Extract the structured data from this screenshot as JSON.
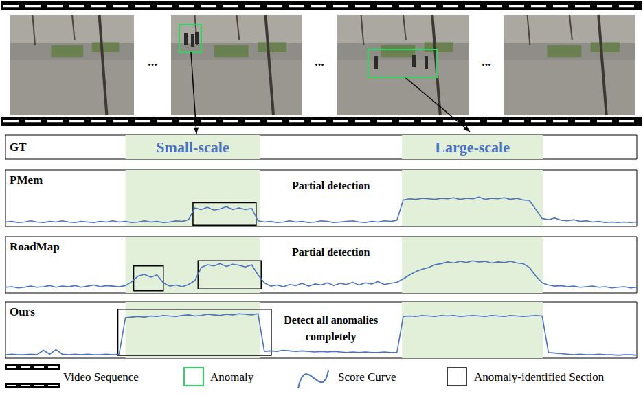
{
  "frames": {
    "count": 4,
    "ellipsis": "...",
    "anomaly_color": "#2ed65f"
  },
  "ground_truth": {
    "label": "GT",
    "xlim": [
      0,
      100
    ],
    "color": "#e2efd9",
    "label_color": "#4a72c0",
    "anomaly_ranges": [
      {
        "label": "Small-scale",
        "x": [
          19.0,
          40.3
        ]
      },
      {
        "label": "Large-scale",
        "x": [
          62.8,
          85.1
        ]
      }
    ]
  },
  "chart_data": [
    {
      "type": "line",
      "title": "PMem",
      "annotation": "Partial detection",
      "color": "#4a72c0",
      "xlim": [
        0,
        100
      ],
      "ylim": [
        0,
        1
      ],
      "tick_labels": false,
      "x": [
        0,
        1,
        2,
        3,
        4,
        5,
        6,
        7,
        8,
        9,
        10,
        11,
        12,
        13,
        14,
        15,
        16,
        17,
        18,
        19,
        20,
        21,
        22,
        23,
        24,
        25,
        26,
        27,
        28,
        29,
        30,
        31,
        32,
        33,
        34,
        35,
        36,
        37,
        38,
        39,
        40,
        41,
        42,
        43,
        44,
        45,
        46,
        47,
        48,
        49,
        50,
        51,
        52,
        53,
        54,
        55,
        56,
        57,
        58,
        59,
        60,
        61,
        62,
        63,
        64,
        65,
        66,
        67,
        68,
        69,
        70,
        71,
        72,
        73,
        74,
        75,
        76,
        77,
        78,
        79,
        80,
        81,
        82,
        83,
        84,
        85,
        86,
        87,
        88,
        89,
        90,
        91,
        92,
        93,
        94,
        95,
        96,
        97,
        98,
        99,
        100
      ],
      "values": [
        0.08,
        0.09,
        0.07,
        0.08,
        0.1,
        0.08,
        0.07,
        0.09,
        0.08,
        0.1,
        0.08,
        0.07,
        0.09,
        0.08,
        0.07,
        0.09,
        0.08,
        0.1,
        0.08,
        0.09,
        0.07,
        0.08,
        0.1,
        0.08,
        0.09,
        0.07,
        0.08,
        0.1,
        0.09,
        0.12,
        0.33,
        0.3,
        0.34,
        0.29,
        0.31,
        0.35,
        0.3,
        0.33,
        0.3,
        0.32,
        0.1,
        0.08,
        0.09,
        0.07,
        0.08,
        0.1,
        0.08,
        0.09,
        0.07,
        0.08,
        0.1,
        0.09,
        0.07,
        0.08,
        0.09,
        0.1,
        0.08,
        0.07,
        0.09,
        0.08,
        0.1,
        0.09,
        0.11,
        0.47,
        0.49,
        0.48,
        0.5,
        0.49,
        0.48,
        0.5,
        0.49,
        0.51,
        0.48,
        0.5,
        0.49,
        0.52,
        0.48,
        0.5,
        0.49,
        0.51,
        0.48,
        0.5,
        0.47,
        0.46,
        0.3,
        0.14,
        0.12,
        0.15,
        0.11,
        0.1,
        0.12,
        0.09,
        0.1,
        0.08,
        0.09,
        0.07,
        0.08,
        0.07,
        0.08,
        0.07,
        0.08
      ],
      "identified_sections": [
        {
          "x": [
            29.7,
            39.7
          ],
          "y": [
            0.02,
            0.42
          ]
        }
      ]
    },
    {
      "type": "line",
      "title": "RoadMap",
      "annotation": "Partial detection",
      "color": "#4a72c0",
      "xlim": [
        0,
        100
      ],
      "ylim": [
        0,
        1
      ],
      "tick_labels": false,
      "x": [
        0,
        1,
        2,
        3,
        4,
        5,
        6,
        7,
        8,
        9,
        10,
        11,
        12,
        13,
        14,
        15,
        16,
        17,
        18,
        19,
        20,
        21,
        22,
        23,
        24,
        25,
        26,
        27,
        28,
        29,
        30,
        31,
        32,
        33,
        34,
        35,
        36,
        37,
        38,
        39,
        40,
        41,
        42,
        43,
        44,
        45,
        46,
        47,
        48,
        49,
        50,
        51,
        52,
        53,
        54,
        55,
        56,
        57,
        58,
        59,
        60,
        61,
        62,
        63,
        64,
        65,
        66,
        67,
        68,
        69,
        70,
        71,
        72,
        73,
        74,
        75,
        76,
        77,
        78,
        79,
        80,
        81,
        82,
        83,
        84,
        85,
        86,
        87,
        88,
        89,
        90,
        91,
        92,
        93,
        94,
        95,
        96,
        97,
        98,
        99,
        100
      ],
      "values": [
        0.1,
        0.11,
        0.09,
        0.1,
        0.12,
        0.1,
        0.11,
        0.13,
        0.1,
        0.12,
        0.11,
        0.13,
        0.1,
        0.12,
        0.14,
        0.11,
        0.13,
        0.12,
        0.11,
        0.13,
        0.2,
        0.3,
        0.33,
        0.28,
        0.32,
        0.18,
        0.12,
        0.14,
        0.11,
        0.15,
        0.22,
        0.45,
        0.5,
        0.48,
        0.52,
        0.47,
        0.51,
        0.49,
        0.46,
        0.5,
        0.32,
        0.18,
        0.12,
        0.14,
        0.11,
        0.15,
        0.13,
        0.17,
        0.12,
        0.16,
        0.14,
        0.18,
        0.13,
        0.17,
        0.15,
        0.19,
        0.14,
        0.18,
        0.16,
        0.2,
        0.15,
        0.17,
        0.19,
        0.25,
        0.32,
        0.38,
        0.42,
        0.45,
        0.5,
        0.52,
        0.55,
        0.53,
        0.56,
        0.54,
        0.57,
        0.55,
        0.56,
        0.53,
        0.55,
        0.54,
        0.56,
        0.53,
        0.52,
        0.45,
        0.3,
        0.18,
        0.14,
        0.12,
        0.13,
        0.11,
        0.12,
        0.1,
        0.11,
        0.12,
        0.1,
        0.11,
        0.09,
        0.1,
        0.11,
        0.09,
        0.1
      ],
      "identified_sections": [
        {
          "x": [
            20.3,
            25.0
          ],
          "y": [
            0.04,
            0.48
          ]
        },
        {
          "x": [
            30.5,
            40.5
          ],
          "y": [
            0.07,
            0.57
          ]
        }
      ]
    },
    {
      "type": "line",
      "title": "Ours",
      "annotation": "Detect all anomalies completely",
      "color": "#4a72c0",
      "xlim": [
        0,
        100
      ],
      "ylim": [
        0,
        1
      ],
      "tick_labels": false,
      "x": [
        0,
        1,
        2,
        3,
        4,
        5,
        6,
        7,
        8,
        9,
        10,
        11,
        12,
        13,
        14,
        15,
        16,
        17,
        18,
        19,
        20,
        21,
        22,
        23,
        24,
        25,
        26,
        27,
        28,
        29,
        30,
        31,
        32,
        33,
        34,
        35,
        36,
        37,
        38,
        39,
        40,
        41,
        42,
        43,
        44,
        45,
        46,
        47,
        48,
        49,
        50,
        51,
        52,
        53,
        54,
        55,
        56,
        57,
        58,
        59,
        60,
        61,
        62,
        63,
        64,
        65,
        66,
        67,
        68,
        69,
        70,
        71,
        72,
        73,
        74,
        75,
        76,
        77,
        78,
        79,
        80,
        81,
        82,
        83,
        84,
        85,
        86,
        87,
        88,
        89,
        90,
        91,
        92,
        93,
        94,
        95,
        96,
        97,
        98,
        99,
        100
      ],
      "values": [
        0.06,
        0.07,
        0.06,
        0.06,
        0.07,
        0.06,
        0.14,
        0.07,
        0.15,
        0.07,
        0.06,
        0.07,
        0.06,
        0.07,
        0.06,
        0.06,
        0.07,
        0.06,
        0.07,
        0.72,
        0.73,
        0.74,
        0.73,
        0.75,
        0.74,
        0.76,
        0.75,
        0.74,
        0.76,
        0.77,
        0.75,
        0.76,
        0.78,
        0.77,
        0.76,
        0.78,
        0.77,
        0.79,
        0.78,
        0.77,
        0.79,
        0.12,
        0.13,
        0.12,
        0.14,
        0.13,
        0.12,
        0.13,
        0.12,
        0.11,
        0.12,
        0.11,
        0.12,
        0.11,
        0.1,
        0.11,
        0.1,
        0.11,
        0.1,
        0.1,
        0.11,
        0.1,
        0.1,
        0.74,
        0.75,
        0.74,
        0.76,
        0.75,
        0.74,
        0.76,
        0.75,
        0.76,
        0.74,
        0.75,
        0.76,
        0.75,
        0.74,
        0.76,
        0.75,
        0.74,
        0.76,
        0.75,
        0.74,
        0.75,
        0.76,
        0.75,
        0.1,
        0.09,
        0.08,
        0.07,
        0.06,
        0.07,
        0.06,
        0.06,
        0.07,
        0.06,
        0.06,
        0.05,
        0.06,
        0.06,
        0.05
      ],
      "identified_sections": [
        {
          "x": [
            17.8,
            42.1
          ],
          "y": [
            0.05,
            0.87
          ]
        }
      ]
    }
  ],
  "legend_items": [
    "Video Sequence",
    "Anomaly",
    "Score Curve",
    "Anomaly-identified Section"
  ]
}
